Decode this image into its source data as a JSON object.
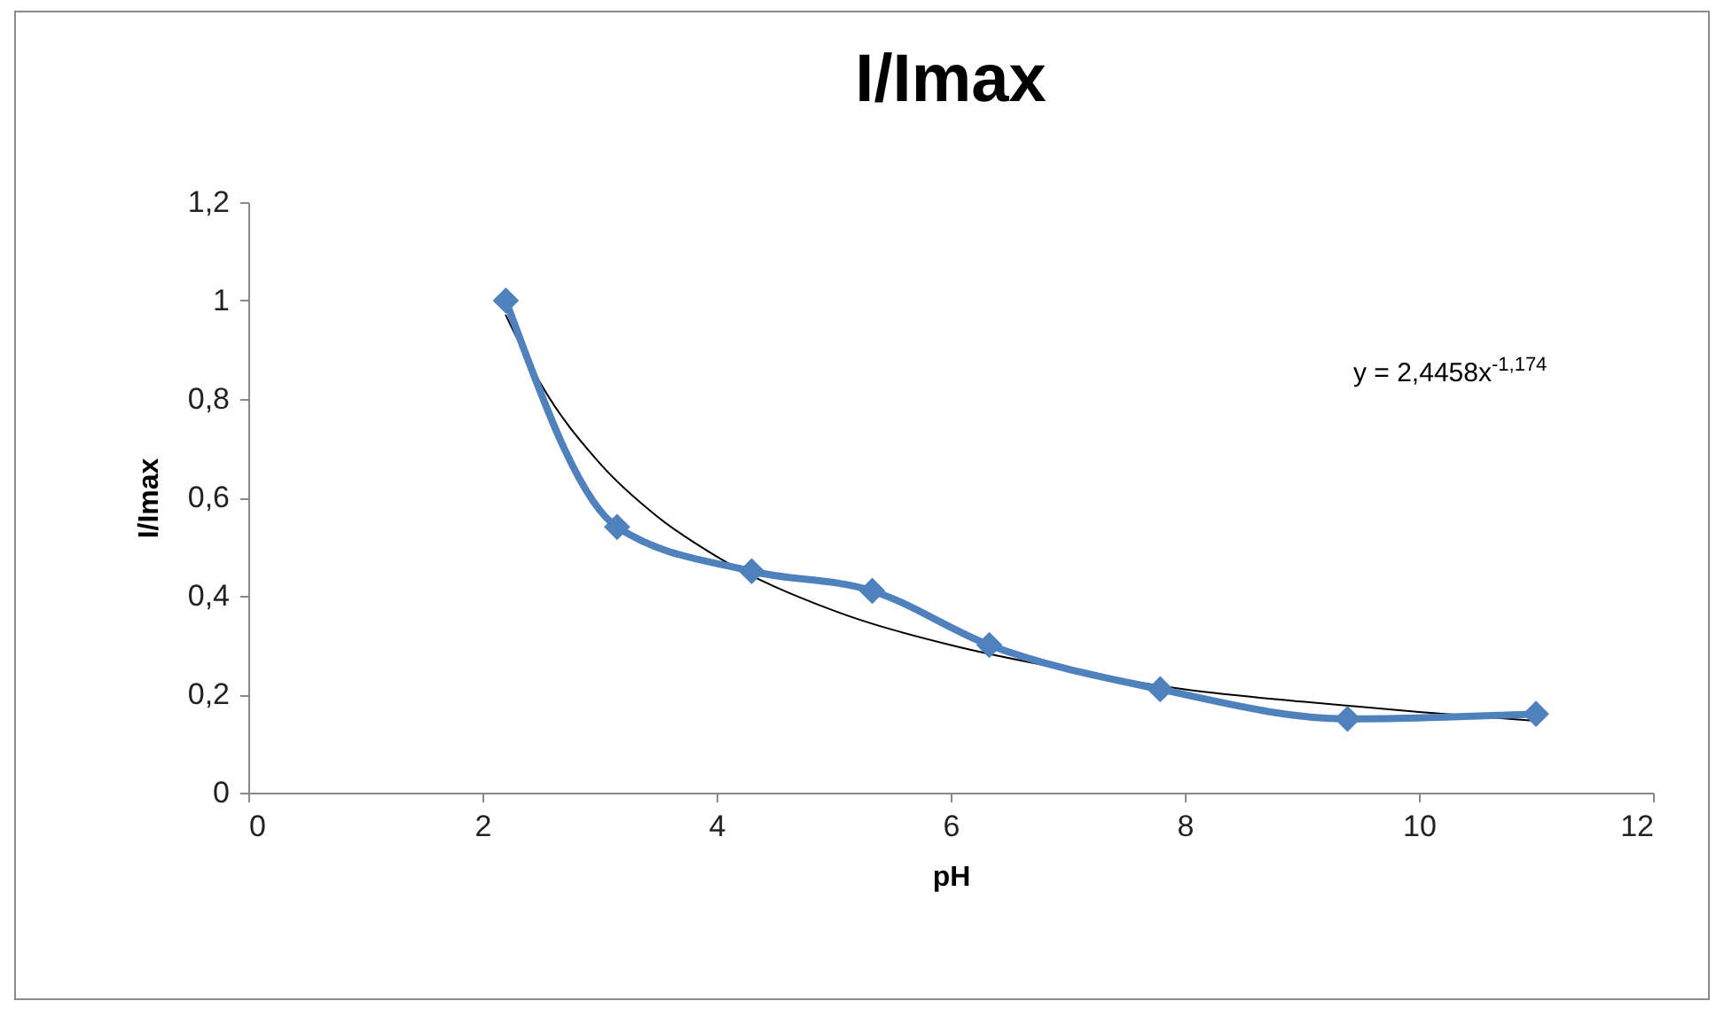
{
  "chart_data": {
    "type": "line",
    "title": "I/Imax",
    "xlabel": "pH",
    "ylabel": "I/Imax",
    "annotations": [
      "y = 2,4458x$^{-1,174}$"
    ],
    "xlim": [
      0,
      12
    ],
    "xticks": [
      0,
      2,
      4,
      6,
      8,
      10,
      12
    ],
    "ylim": [
      0,
      1.2
    ],
    "yticks": [
      0,
      {
        "value": 0.2,
        "label": "0,2"
      },
      {
        "value": 0.4,
        "label": "0,4"
      },
      {
        "value": 0.6,
        "label": "0,6"
      },
      {
        "value": 0.8,
        "label": "0,8"
      },
      1,
      {
        "value": 1.2,
        "label": "1,2"
      }
    ],
    "grid": false,
    "marker": "diamond",
    "line_style": "solid",
    "series": [
      {
        "color": "#000000",
        "marker": "none",
        "x": [
          2.2,
          2.5,
          3,
          3.5,
          4,
          5,
          6,
          7,
          8,
          9,
          10,
          11
        ],
        "values": [
          0.97,
          0.83,
          0.67,
          0.56,
          0.48,
          0.37,
          0.3,
          0.25,
          0.21,
          0.185,
          0.164,
          0.146
        ]
      },
      {
        "color": "#4f81bd",
        "x": [
          2.2,
          3.15,
          4.3,
          5.33,
          6.33,
          7.79,
          9.39,
          11.0
        ],
        "values": [
          1.0,
          0.54,
          0.45,
          0.41,
          0.3,
          0.21,
          0.15,
          0.16
        ]
      }
    ]
  }
}
